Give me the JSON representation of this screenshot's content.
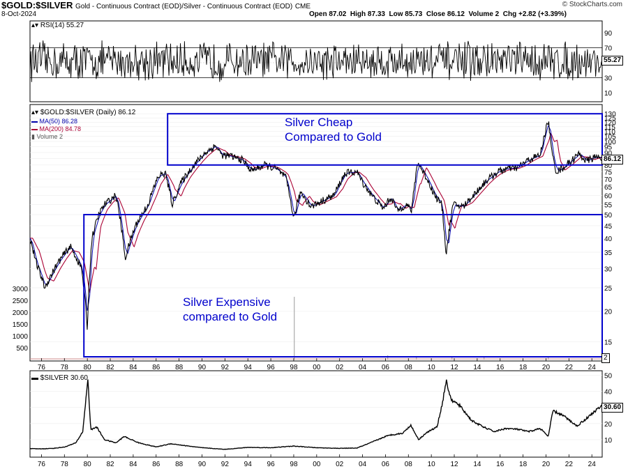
{
  "header": {
    "symbol": "$GOLD:$SILVER",
    "description": "Gold - Continuous Contract (EOD)/Silver - Continuous Contract (EOD)",
    "exchange": "CME",
    "date": "8-Oct-2024",
    "open": "Open 87.02",
    "high": "High 87.33",
    "low": "Low 85.73",
    "close": "Close 86.12",
    "volume": "Volume 2",
    "change": "Chg +2.82 (+3.39%)",
    "brand": "© StockCharts.com"
  },
  "panels": {
    "rsi_label": "RSI(14) 55.27",
    "ratio_label": "$GOLD:$SILVER (Daily) 86.12",
    "ma50_label": "MA(50) 86.28",
    "ma200_label": "MA(200) 84.78",
    "volume_label": "Volume 2",
    "silver_label": "$SILVER 30.60"
  },
  "badges": {
    "rsi": "55.27",
    "ratio": "86.12",
    "silver": "30.60",
    "volume": "2"
  },
  "annotations": {
    "cheap_line1": "Silver Cheap",
    "cheap_line2": "Compared to Gold",
    "expensive_line1": "Silver Expensive",
    "expensive_line2": "compared to Gold"
  },
  "colors": {
    "price": "#000000",
    "ma50": "#0000aa",
    "ma200": "#aa0033",
    "box": "#0000cc",
    "grid": "#bbbbbb",
    "volume": "#999999"
  },
  "chart_data": [
    {
      "type": "line",
      "name": "RSI(14)",
      "ylim": [
        0,
        100
      ],
      "y_ticks": [
        10,
        30,
        50,
        70,
        90
      ],
      "reference_lines": [
        30,
        70
      ],
      "last_value": 55.27
    },
    {
      "type": "line",
      "log_scale": true,
      "title": "$GOLD:$SILVER (Daily) 86.12",
      "x_ticks": [
        "76",
        "78",
        "80",
        "82",
        "84",
        "86",
        "88",
        "90",
        "92",
        "94",
        "96",
        "98",
        "00",
        "02",
        "04",
        "06",
        "08",
        "10",
        "12",
        "14",
        "16",
        "18",
        "20",
        "22",
        "24"
      ],
      "y_ticks": [
        15,
        20,
        25,
        30,
        35,
        40,
        45,
        50,
        55,
        60,
        65,
        70,
        75,
        80,
        85,
        90,
        95,
        100,
        105,
        110,
        115,
        120,
        125,
        130
      ],
      "volume_ticks": [
        500,
        1000,
        1500,
        2000,
        2500,
        3000
      ],
      "x": [
        1975.0,
        1975.5,
        1976.3,
        1977.5,
        1978.5,
        1979.5,
        1980.0,
        1980.4,
        1981.0,
        1981.5,
        1982.5,
        1983.3,
        1984.2,
        1985.3,
        1986.2,
        1986.8,
        1987.4,
        1988.2,
        1989.3,
        1990.3,
        1991.2,
        1991.7,
        1992.5,
        1993.5,
        1994.3,
        1995.5,
        1996.5,
        1997.3,
        1998.0,
        1998.6,
        1999.5,
        2000.5,
        2001.5,
        2002.5,
        2003.5,
        2004.0,
        2004.8,
        2005.8,
        2006.5,
        2007.0,
        2007.8,
        2008.3,
        2008.8,
        2009.5,
        2010.3,
        2010.9,
        2011.3,
        2011.9,
        2012.8,
        2013.8,
        2014.8,
        2015.8,
        2016.5,
        2017.5,
        2018.5,
        2019.5,
        2020.2,
        2020.5,
        2020.9,
        2021.5,
        2022.3,
        2022.9,
        2023.5,
        2024.2,
        2024.77
      ],
      "series": [
        {
          "name": "$GOLD:$SILVER",
          "values": [
            40,
            32,
            25,
            32,
            37,
            30,
            17,
            40,
            50,
            55,
            60,
            33,
            45,
            55,
            72,
            74,
            55,
            68,
            80,
            90,
            96,
            88,
            87,
            84,
            76,
            80,
            77,
            71,
            48,
            62,
            54,
            57,
            60,
            74,
            75,
            68,
            60,
            53,
            59,
            52,
            55,
            52,
            82,
            72,
            60,
            55,
            34,
            55,
            54,
            61,
            69,
            75,
            77,
            78,
            84,
            88,
            122,
            90,
            75,
            78,
            84,
            89,
            83,
            86,
            86.12
          ]
        },
        {
          "name": "MA(50)",
          "last_value": 86.28
        },
        {
          "name": "MA(200)",
          "last_value": 84.78
        }
      ],
      "boxes": [
        {
          "label": "Silver Cheap Compared to Gold",
          "x_range": [
            1987.0,
            2024.9
          ],
          "y_range": [
            80,
            130
          ]
        },
        {
          "label": "Silver Expensive compared to Gold",
          "x_range": [
            1979.7,
            2024.9
          ],
          "y_range": [
            13,
            50
          ]
        }
      ]
    },
    {
      "type": "line",
      "title": "$SILVER 30.60",
      "x_ticks": [
        "76",
        "78",
        "80",
        "82",
        "84",
        "86",
        "88",
        "90",
        "92",
        "94",
        "96",
        "98",
        "00",
        "02",
        "04",
        "06",
        "08",
        "10",
        "12",
        "14",
        "16",
        "18",
        "20",
        "22",
        "24"
      ],
      "y_ticks": [
        10,
        20,
        30,
        40,
        50
      ],
      "ylim": [
        0,
        52
      ],
      "x": [
        1975.0,
        1976.0,
        1977.0,
        1978.0,
        1979.0,
        1979.6,
        1980.05,
        1980.3,
        1980.8,
        1981.5,
        1982.5,
        1983.2,
        1984.5,
        1986.0,
        1987.3,
        1988.5,
        1990.0,
        1992.0,
        1994.0,
        1996.0,
        1998.0,
        2000.0,
        2002.0,
        2003.5,
        2004.5,
        2006.0,
        2006.5,
        2007.5,
        2008.2,
        2008.9,
        2009.5,
        2010.5,
        2011.0,
        2011.3,
        2011.7,
        2012.5,
        2013.5,
        2014.5,
        2015.5,
        2016.5,
        2017.5,
        2018.5,
        2019.5,
        2020.2,
        2020.6,
        2021.5,
        2022.7,
        2023.5,
        2024.3,
        2024.77
      ],
      "series": [
        {
          "name": "$SILVER",
          "values": [
            4.4,
            4.3,
            4.6,
            5.4,
            8,
            15,
            48,
            16,
            18,
            10,
            8,
            12,
            8,
            5.5,
            7.5,
            6.3,
            5,
            4,
            5.2,
            5,
            6,
            5,
            4.6,
            4.8,
            7.5,
            12,
            13,
            14,
            19,
            10,
            14,
            18,
            34,
            47,
            35,
            31,
            22,
            18,
            15,
            17,
            16.5,
            15,
            17,
            12,
            28,
            25,
            18.5,
            23,
            28,
            30.6
          ]
        }
      ]
    }
  ]
}
